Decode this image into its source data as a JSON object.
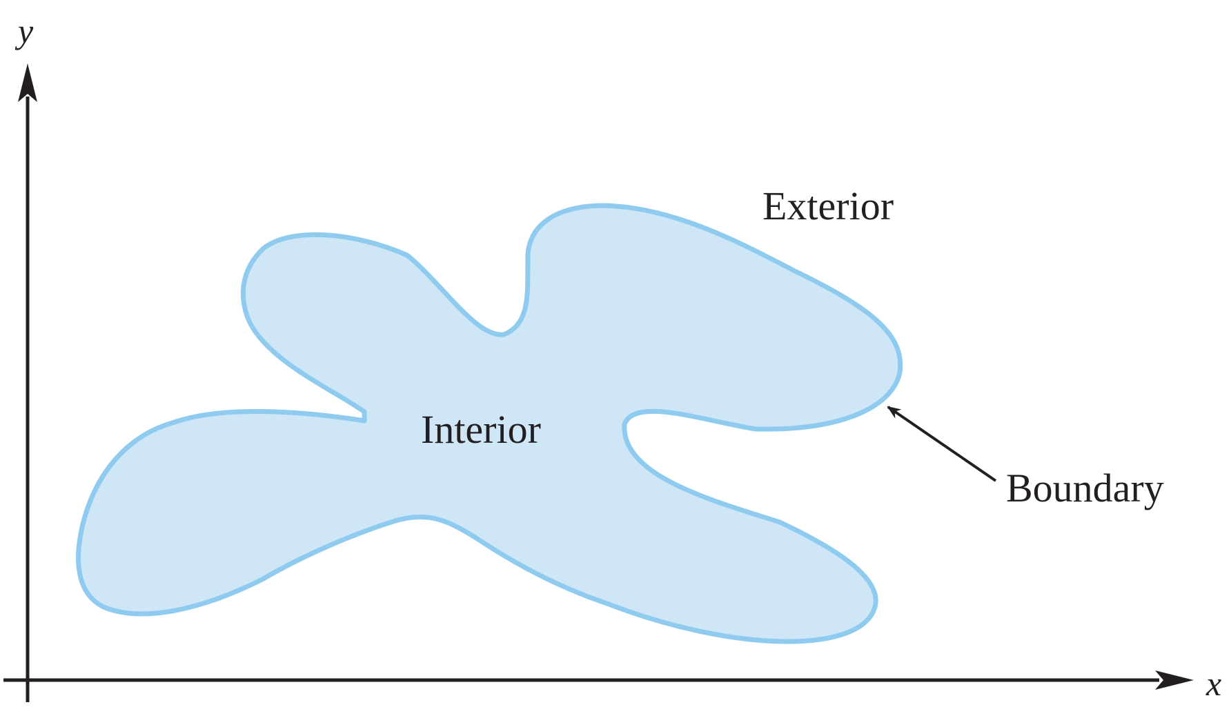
{
  "diagram": {
    "axes": {
      "x_label": "x",
      "y_label": "y"
    },
    "regions": {
      "interior_label": "Interior",
      "exterior_label": "Exterior",
      "boundary_label": "Boundary"
    },
    "colors": {
      "region_fill": "#cfe6f7",
      "region_stroke": "#8ecbef",
      "axis": "#231f20",
      "text": "#231f20"
    }
  }
}
